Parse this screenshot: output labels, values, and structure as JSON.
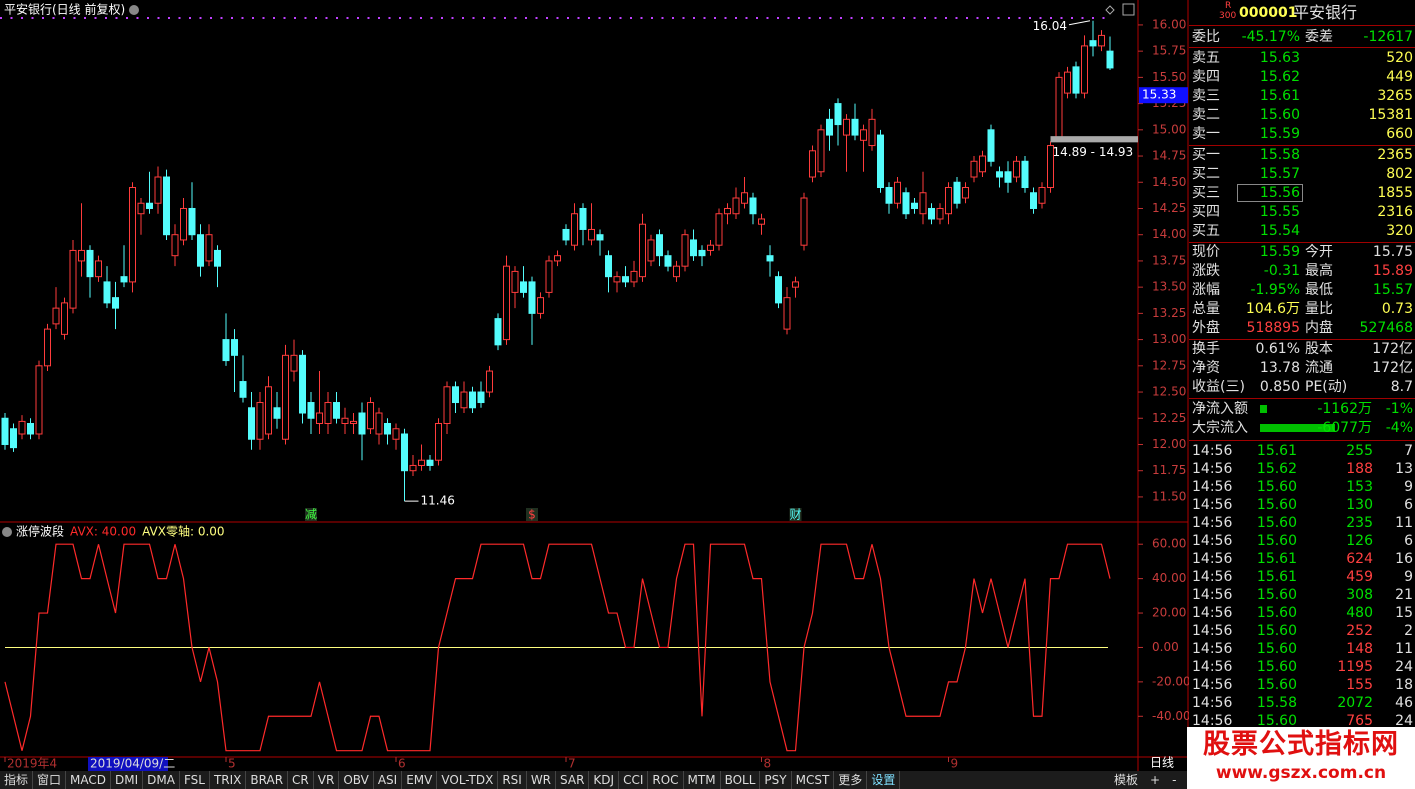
{
  "chart_data": [
    {
      "type": "candlestick",
      "title": "平安银行(日线 前复权)",
      "up_color": "#ff3c3c",
      "down_color": "#54fcfc",
      "open": [
        12.25,
        12.15,
        12.1,
        12.2,
        12.1,
        12.75,
        13.15,
        13.05,
        13.3,
        13.75,
        13.85,
        13.6,
        13.55,
        13.4,
        13.6,
        13.55,
        14.2,
        14.3,
        14.3,
        14.55,
        13.8,
        13.95,
        14.25,
        14.0,
        13.75,
        13.85,
        13.0,
        13.0,
        12.6,
        12.35,
        12.05,
        12.1,
        12.35,
        12.05,
        12.7,
        12.85,
        12.4,
        12.2,
        12.2,
        12.4,
        12.2,
        12.2,
        12.3,
        12.15,
        12.1,
        12.2,
        12.05,
        12.1,
        11.75,
        11.8,
        11.85,
        11.85,
        12.2,
        12.55,
        12.35,
        12.5,
        12.5,
        12.5,
        13.2,
        13.0,
        13.45,
        13.55,
        13.55,
        13.25,
        13.45,
        13.75,
        14.05,
        13.9,
        14.25,
        13.95,
        14.0,
        13.8,
        13.55,
        13.6,
        13.55,
        13.6,
        13.75,
        14.0,
        13.8,
        13.6,
        13.7,
        13.95,
        13.85,
        13.85,
        13.9,
        14.2,
        14.2,
        14.3,
        14.35,
        14.1,
        13.8,
        13.6,
        13.1,
        13.5,
        13.9,
        14.55,
        14.6,
        15.1,
        15.25,
        14.95,
        15.1,
        14.9,
        14.85,
        14.95,
        14.45,
        14.3,
        14.4,
        14.3,
        14.2,
        14.25,
        14.15,
        14.2,
        14.5,
        14.35,
        14.55,
        14.6,
        15.0,
        14.6,
        14.6,
        14.55,
        14.7,
        14.4,
        14.3,
        14.45,
        14.93,
        15.35,
        15.6,
        15.35,
        15.85,
        15.8,
        15.75
      ],
      "high": [
        12.3,
        12.2,
        12.28,
        12.25,
        12.8,
        13.15,
        13.5,
        13.4,
        13.95,
        14.3,
        13.9,
        13.8,
        13.7,
        13.55,
        13.9,
        14.5,
        14.35,
        14.6,
        14.65,
        14.62,
        14.1,
        14.35,
        14.5,
        14.1,
        14.1,
        13.9,
        13.25,
        13.1,
        12.85,
        12.5,
        12.5,
        12.65,
        12.5,
        12.95,
        13.0,
        12.9,
        12.5,
        12.7,
        12.5,
        12.5,
        12.35,
        12.3,
        12.4,
        12.45,
        12.35,
        12.25,
        12.2,
        12.15,
        11.9,
        12.0,
        11.9,
        12.25,
        12.6,
        12.6,
        12.6,
        12.55,
        12.6,
        12.75,
        13.25,
        13.8,
        13.7,
        13.7,
        13.6,
        13.45,
        13.8,
        13.85,
        14.1,
        14.3,
        14.3,
        14.3,
        14.05,
        13.85,
        13.65,
        13.7,
        13.75,
        14.2,
        14.0,
        14.05,
        13.85,
        13.75,
        14.05,
        14.05,
        13.9,
        13.95,
        14.25,
        14.3,
        14.45,
        14.55,
        14.4,
        14.2,
        13.9,
        13.65,
        13.5,
        13.6,
        14.4,
        14.85,
        15.05,
        15.2,
        15.3,
        15.15,
        15.25,
        15.05,
        15.2,
        15.0,
        14.5,
        14.55,
        14.45,
        14.35,
        14.6,
        14.3,
        14.3,
        14.5,
        14.55,
        14.5,
        14.75,
        14.8,
        15.05,
        14.65,
        14.7,
        14.75,
        14.75,
        14.45,
        14.5,
        14.89,
        15.55,
        15.6,
        15.65,
        15.9,
        16.04,
        15.95,
        15.89
      ],
      "low": [
        11.95,
        11.93,
        12.05,
        12.05,
        12.05,
        12.7,
        13.1,
        13.0,
        13.25,
        13.6,
        13.4,
        13.55,
        13.3,
        13.1,
        13.5,
        13.45,
        14.0,
        14.2,
        14.2,
        13.95,
        13.7,
        13.9,
        13.95,
        13.6,
        13.7,
        13.5,
        12.75,
        12.5,
        12.4,
        11.95,
        11.95,
        12.05,
        12.15,
        12.0,
        12.6,
        12.2,
        12.1,
        12.1,
        12.1,
        12.2,
        12.1,
        12.1,
        11.85,
        12.1,
        12.0,
        12.0,
        11.95,
        11.46,
        11.7,
        11.75,
        11.75,
        11.8,
        12.1,
        12.3,
        12.3,
        12.3,
        12.35,
        12.45,
        12.9,
        12.95,
        13.3,
        13.4,
        12.95,
        13.2,
        13.4,
        13.7,
        13.9,
        13.85,
        13.9,
        13.9,
        13.8,
        13.45,
        13.45,
        13.5,
        13.5,
        13.55,
        13.7,
        13.7,
        13.65,
        13.55,
        13.65,
        13.75,
        13.7,
        13.8,
        13.85,
        14.1,
        14.15,
        14.25,
        14.1,
        14.0,
        13.6,
        13.3,
        13.05,
        13.4,
        13.85,
        14.5,
        14.55,
        14.8,
        14.85,
        14.6,
        14.9,
        14.6,
        14.8,
        14.4,
        14.2,
        14.25,
        14.15,
        14.2,
        14.1,
        14.1,
        14.1,
        14.1,
        14.25,
        14.3,
        14.5,
        14.55,
        14.65,
        14.45,
        14.4,
        14.5,
        14.4,
        14.2,
        14.25,
        14.4,
        14.93,
        15.3,
        15.3,
        15.3,
        15.7,
        15.75,
        15.57
      ],
      "close": [
        12.0,
        11.97,
        12.22,
        12.1,
        12.75,
        13.1,
        13.3,
        13.35,
        13.85,
        13.85,
        13.6,
        13.75,
        13.35,
        13.3,
        13.55,
        14.45,
        14.3,
        14.25,
        14.55,
        14.0,
        14.0,
        14.25,
        14.0,
        13.7,
        14.0,
        13.7,
        12.8,
        12.85,
        12.45,
        12.05,
        12.4,
        12.55,
        12.25,
        12.85,
        12.85,
        12.3,
        12.25,
        12.3,
        12.4,
        12.25,
        12.25,
        12.22,
        12.1,
        12.4,
        12.3,
        12.1,
        12.15,
        11.75,
        11.8,
        11.85,
        11.8,
        12.2,
        12.55,
        12.4,
        12.5,
        12.35,
        12.4,
        12.7,
        12.95,
        13.7,
        13.65,
        13.45,
        13.25,
        13.4,
        13.75,
        13.8,
        13.95,
        14.2,
        14.05,
        14.05,
        13.95,
        13.6,
        13.6,
        13.55,
        13.65,
        14.1,
        13.95,
        13.8,
        13.7,
        13.7,
        14.0,
        13.8,
        13.8,
        13.9,
        14.2,
        14.25,
        14.35,
        14.4,
        14.2,
        14.15,
        13.75,
        13.35,
        13.4,
        13.55,
        14.35,
        14.8,
        15.0,
        14.95,
        15.05,
        15.1,
        14.95,
        15.0,
        15.1,
        14.45,
        14.3,
        14.5,
        14.2,
        14.25,
        14.4,
        14.15,
        14.25,
        14.45,
        14.3,
        14.45,
        14.7,
        14.75,
        14.7,
        14.55,
        14.5,
        14.7,
        14.45,
        14.25,
        14.45,
        14.85,
        15.5,
        15.55,
        15.35,
        15.8,
        15.8,
        15.9,
        15.59
      ],
      "ylim": [
        11.28,
        16.19
      ],
      "yticks": [
        {
          "value": 11.5,
          "label": "11.50"
        },
        {
          "value": 11.75,
          "label": "11.75"
        },
        {
          "value": 12,
          "label": "12.00"
        },
        {
          "value": 12.25,
          "label": "12.25"
        },
        {
          "value": 12.5,
          "label": "12.50"
        },
        {
          "value": 12.75,
          "label": "12.75"
        },
        {
          "value": 13,
          "label": "13.00"
        },
        {
          "value": 13.25,
          "label": "13.25"
        },
        {
          "value": 13.5,
          "label": "13.50"
        },
        {
          "value": 13.75,
          "label": "13.75"
        },
        {
          "value": 14,
          "label": "14.00"
        },
        {
          "value": 14.25,
          "label": "14.25"
        },
        {
          "value": 14.5,
          "label": "14.50"
        },
        {
          "value": 14.75,
          "label": "14.75"
        },
        {
          "value": 15,
          "label": "15.00"
        },
        {
          "value": 15.25,
          "label": "15.25"
        },
        {
          "value": 15.5,
          "label": "15.50"
        },
        {
          "value": 15.75,
          "label": "15.75"
        },
        {
          "value": 16,
          "label": "16.00"
        }
      ],
      "high_mark": {
        "index": 128,
        "value": 16.04
      },
      "low_mark": {
        "index": 47,
        "value": 11.46
      },
      "gap": {
        "start": 123,
        "low": 14.89,
        "high": 14.93,
        "label": "14.89 - 14.93"
      },
      "cursor_price": 15.33,
      "cursor_date": {
        "index": 10,
        "label": "2019/04/09/二"
      },
      "x_labels": [
        {
          "index": 0,
          "label": "2019年4"
        },
        {
          "index": 26,
          "label": "5"
        },
        {
          "index": 46,
          "label": "6"
        },
        {
          "index": 66,
          "label": "7"
        },
        {
          "index": 89,
          "label": "8"
        },
        {
          "index": 111,
          "label": "9"
        }
      ],
      "events": [
        {
          "index": 36,
          "label": "减",
          "color": "#40ff40"
        },
        {
          "index": 62,
          "label": "$",
          "color": "#ff4040"
        },
        {
          "index": 93,
          "label": "财",
          "color": "#54fcfc"
        }
      ]
    },
    {
      "type": "line",
      "title": "涨停波段",
      "series": [
        {
          "name": "AVX: 40.00",
          "color": "#ff2a2a",
          "values": [
            -20,
            -40,
            -60,
            -40,
            20,
            20,
            60,
            60,
            60,
            40,
            40,
            60,
            40,
            20,
            60,
            60,
            60,
            60,
            40,
            40,
            60,
            40,
            0,
            -20,
            0,
            -20,
            -60,
            -60,
            -60,
            -60,
            -60,
            -40,
            -40,
            -40,
            -40,
            -40,
            -40,
            -20,
            -40,
            -60,
            -60,
            -60,
            -60,
            -40,
            -40,
            -60,
            -60,
            -60,
            -60,
            -60,
            -60,
            0,
            20,
            40,
            40,
            40,
            60,
            60,
            60,
            60,
            60,
            60,
            40,
            40,
            60,
            60,
            60,
            60,
            60,
            60,
            40,
            20,
            20,
            0,
            0,
            40,
            20,
            0,
            0,
            40,
            60,
            60,
            -40,
            60,
            60,
            60,
            60,
            60,
            40,
            40,
            -20,
            -40,
            -60,
            -60,
            0,
            20,
            60,
            60,
            60,
            60,
            40,
            40,
            60,
            40,
            0,
            -20,
            -40,
            -40,
            -40,
            -40,
            -40,
            -20,
            -20,
            0,
            40,
            20,
            40,
            20,
            0,
            20,
            40,
            -40,
            -40,
            40,
            40,
            60,
            60,
            60,
            60,
            60,
            40
          ]
        }
      ],
      "zero_line": {
        "name": "AVX零轴: 0.00",
        "value": 0,
        "color": "#ffff80"
      },
      "ylim": [
        -62.5,
        70
      ],
      "yticks": [
        {
          "value": 60,
          "label": "60.00"
        },
        {
          "value": 40,
          "label": "40.00"
        },
        {
          "value": 20,
          "label": "20.00"
        },
        {
          "value": 0,
          "label": "0.00"
        },
        {
          "value": -20,
          "label": "-20.00"
        },
        {
          "value": -40,
          "label": "-40.00"
        }
      ]
    }
  ],
  "period": "日线",
  "tabs": [
    "指标",
    "窗口",
    "MACD",
    "DMI",
    "DMA",
    "FSL",
    "TRIX",
    "BRAR",
    "CR",
    "VR",
    "OBV",
    "ASI",
    "EMV",
    "VOL-TDX",
    "RSI",
    "WR",
    "SAR",
    "KDJ",
    "CCI",
    "ROC",
    "MTM",
    "BOLL",
    "PSY",
    "MCST",
    "更多",
    "设置"
  ],
  "right_tabs": [
    "模板",
    "+",
    "-"
  ],
  "quote": {
    "badge_top": "R",
    "badge_bottom": "300",
    "code": "000001",
    "name": "平安银行",
    "ratio": [
      "委比",
      "-45.17%",
      "委差",
      "-12617"
    ],
    "asks": [
      [
        "卖五",
        "15.63",
        "520"
      ],
      [
        "卖四",
        "15.62",
        "449"
      ],
      [
        "卖三",
        "15.61",
        "3265"
      ],
      [
        "卖二",
        "15.60",
        "15381"
      ],
      [
        "卖一",
        "15.59",
        "660"
      ]
    ],
    "bids": [
      [
        "买一",
        "15.58",
        "2365"
      ],
      [
        "买二",
        "15.57",
        "802"
      ],
      [
        "买三",
        "15.56",
        "1855"
      ],
      [
        "买四",
        "15.55",
        "2316"
      ],
      [
        "买五",
        "15.54",
        "320"
      ]
    ],
    "stats": [
      [
        "现价",
        "15.59",
        "今开",
        "15.75"
      ],
      [
        "涨跌",
        "-0.31",
        "最高",
        "15.89"
      ],
      [
        "涨幅",
        "-1.95%",
        "最低",
        "15.57"
      ],
      [
        "总量",
        "104.6万",
        "量比",
        "0.73"
      ],
      [
        "外盘",
        "518895",
        "内盘",
        "527468"
      ]
    ],
    "fundamentals": [
      [
        "换手",
        "0.61%",
        "股本",
        "172亿"
      ],
      [
        "净资",
        "13.78",
        "流通",
        "172亿"
      ],
      [
        "收益(三)",
        "0.850",
        "PE(动)",
        "8.7"
      ]
    ],
    "flows": [
      [
        "净流入额",
        "-1162万",
        "-1%"
      ],
      [
        "大宗流入",
        "-6077万",
        "-4%"
      ]
    ],
    "trades": [
      [
        "14:56",
        "15.61",
        "255",
        "7"
      ],
      [
        "14:56",
        "15.62",
        "188",
        "13"
      ],
      [
        "14:56",
        "15.60",
        "153",
        "9"
      ],
      [
        "14:56",
        "15.60",
        "130",
        "6"
      ],
      [
        "14:56",
        "15.60",
        "235",
        "11"
      ],
      [
        "14:56",
        "15.60",
        "126",
        "6"
      ],
      [
        "14:56",
        "15.61",
        "624",
        "16"
      ],
      [
        "14:56",
        "15.61",
        "459",
        "9"
      ],
      [
        "14:56",
        "15.60",
        "308",
        "21"
      ],
      [
        "14:56",
        "15.60",
        "480",
        "15"
      ],
      [
        "14:56",
        "15.60",
        "252",
        "2"
      ],
      [
        "14:56",
        "15.60",
        "148",
        "11"
      ],
      [
        "14:56",
        "15.60",
        "1195",
        "24"
      ],
      [
        "14:56",
        "15.60",
        "155",
        "18"
      ],
      [
        "14:56",
        "15.58",
        "2072",
        "46"
      ],
      [
        "14:56",
        "15.60",
        "765",
        "24"
      ]
    ],
    "trade_volume_colors": [
      "#00e000",
      "#ff4040",
      "#00e000",
      "#00e000",
      "#00e000",
      "#00e000",
      "#ff4040",
      "#ff4040",
      "#00e000",
      "#00e000",
      "#ff4040",
      "#ff4040",
      "#ff4040",
      "#ff4040",
      "#00e000",
      "#ff4040"
    ]
  },
  "watermark": {
    "title": "股票公式指标网",
    "url": "www.gszx.com.cn"
  }
}
